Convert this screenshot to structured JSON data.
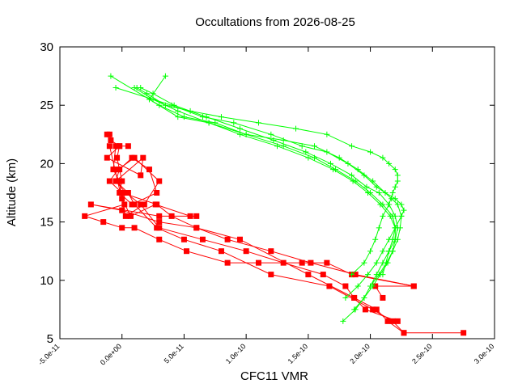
{
  "chart_data": {
    "type": "scatter",
    "title": "Occultations from 2026-08-25",
    "xlabel": "CFC11 VMR",
    "ylabel": "Altitude (km)",
    "xlim": [
      -5e-11,
      3e-10
    ],
    "ylim": [
      5,
      30
    ],
    "x_ticks": [
      -5e-11,
      0.0,
      5e-11,
      1e-10,
      1.5e-10,
      2e-10,
      2.5e-10,
      3e-10
    ],
    "x_tick_labels": [
      "-5.0e-11",
      "0.0e+00",
      "5.0e-11",
      "1.0e-10",
      "1.5e-10",
      "2.0e-10",
      "2.5e-10",
      "3.0e-10"
    ],
    "y_ticks": [
      5,
      10,
      15,
      20,
      25,
      30
    ],
    "y_tick_labels": [
      "5",
      "10",
      "15",
      "20",
      "25",
      "30"
    ],
    "grid": false,
    "legend": false,
    "series": [
      {
        "color": "#ff0000",
        "marker": "square",
        "x": [
          2.75e-10,
          2.27e-10,
          2.18e-10,
          2.02e-10,
          1.67e-10,
          1.2e-10,
          8e-11,
          5e-11,
          2.8e-11,
          1e-11,
          5e-12,
          -5e-12,
          -2e-12,
          8e-12,
          2.2e-11,
          2.8e-11,
          8e-12,
          -2e-12,
          0.0,
          -4e-12,
          -2e-12,
          -9e-12,
          -1e-11,
          -1.2e-11
        ],
        "y": [
          5.5,
          5.5,
          6.5,
          7.5,
          9.5,
          10.5,
          12.5,
          13.5,
          14.5,
          16.5,
          17.5,
          18.5,
          19.5,
          20.5,
          19.5,
          17.5,
          16.5,
          17.5,
          18.5,
          20.5,
          21.5,
          22.0,
          22.5,
          22.5
        ]
      },
      {
        "color": "#ff0000",
        "marker": "square",
        "x": [
          2.27e-10,
          2.14e-10,
          2.05e-10,
          1.87e-10,
          1.5e-10,
          9.5e-11,
          6e-11,
          4e-11,
          2.8e-11,
          0.0,
          -1e-11,
          -3e-12,
          1e-11,
          3e-11,
          1.8e-11,
          3e-12,
          -1e-11
        ],
        "y": [
          5.5,
          6.5,
          7.5,
          8.5,
          10.5,
          13.5,
          14.5,
          15.5,
          16.5,
          17.5,
          18.5,
          19.5,
          20.5,
          18.5,
          16.5,
          15.5,
          21.5
        ]
      },
      {
        "color": "#ff0000",
        "marker": "square",
        "x": [
          2.22e-10,
          1.96e-10,
          1.87e-10,
          1.8e-10,
          1.62e-10,
          1.3e-10,
          1e-10,
          6.5e-11,
          3e-11,
          1.5e-11,
          3e-12,
          -5e-12,
          1.7e-11,
          1.5e-11,
          -1.2e-11,
          -2e-12
        ],
        "y": [
          6.5,
          7.5,
          8.5,
          9.5,
          10.5,
          11.5,
          12.5,
          13.5,
          14.5,
          16.5,
          17.5,
          18.5,
          20.5,
          19.0,
          20.5,
          21.5
        ]
      },
      {
        "color": "#ff0000",
        "marker": "square",
        "x": [
          2.1e-10,
          2.04e-10,
          2.35e-10,
          1.85e-10,
          1.65e-10,
          1.45e-10,
          1.1e-10,
          8.5e-11,
          5.2e-11,
          3e-11,
          1e-11,
          0.0,
          -1.5e-11,
          -3e-11,
          2e-12
        ],
        "y": [
          8.5,
          9.5,
          9.5,
          10.5,
          11.5,
          11.5,
          11.5,
          11.5,
          12.5,
          13.5,
          14.5,
          14.5,
          15.0,
          15.5,
          16.5
        ]
      },
      {
        "color": "#ff0000",
        "marker": "square",
        "x": [
          2.35e-10,
          1.88e-10,
          1.52e-10,
          1.2e-10,
          8.5e-11,
          6e-11,
          3e-11,
          0.0,
          -2.5e-11,
          3e-11,
          6e-11,
          5.5e-11,
          2.7e-11,
          7e-12,
          0.0,
          -2e-12,
          -7e-12,
          -5e-12,
          5e-12
        ],
        "y": [
          9.5,
          10.5,
          11.5,
          12.5,
          13.5,
          14.5,
          15.0,
          16.0,
          16.5,
          15.5,
          15.5,
          15.5,
          16.5,
          15.5,
          17.0,
          18.5,
          19.5,
          21.5,
          21.5
        ]
      },
      {
        "color": "#00ff00",
        "marker": "plus",
        "x": [
          1.85e-10,
          1.95e-10,
          2e-10,
          2.04e-10,
          2.07e-10,
          2.1e-10,
          2.15e-10,
          2.18e-10,
          2.2e-10,
          2.22e-10,
          2.22e-10,
          2.2e-10,
          2.15e-10,
          2.1e-10,
          2e-10,
          1.85e-10,
          1.65e-10,
          1.4e-10,
          1.1e-10,
          8e-11,
          5.5e-11,
          3.5e-11,
          2e-11,
          1.2e-11
        ],
        "y": [
          10.5,
          11.5,
          12.5,
          13.5,
          14.5,
          15.5,
          16.5,
          17.5,
          18.0,
          18.5,
          19.0,
          19.5,
          20.0,
          20.5,
          21.0,
          21.5,
          22.5,
          23.0,
          23.5,
          24.0,
          24.5,
          25.0,
          26.0,
          26.5
        ]
      },
      {
        "color": "#00ff00",
        "marker": "plus",
        "x": [
          1.8e-10,
          1.9e-10,
          1.98e-10,
          2.05e-10,
          2.1e-10,
          2.15e-10,
          2.2e-10,
          2.25e-10,
          2.27e-10,
          2.25e-10,
          2.2e-10,
          2.12e-10,
          2.05e-10,
          1.95e-10,
          1.82e-10,
          1.65e-10,
          1.45e-10,
          1.2e-10,
          9e-11,
          6.5e-11,
          4e-11,
          -5e-12
        ],
        "y": [
          8.5,
          9.5,
          10.5,
          11.5,
          12.5,
          13.5,
          14.5,
          15.5,
          16.0,
          16.5,
          17.0,
          17.5,
          18.0,
          19.0,
          20.0,
          21.0,
          21.5,
          22.5,
          23.5,
          24.0,
          25.0,
          26.5
        ]
      },
      {
        "color": "#00ff00",
        "marker": "plus",
        "x": [
          1.78e-10,
          1.88e-10,
          1.95e-10,
          2e-10,
          2.07e-10,
          2.13e-10,
          2.18e-10,
          2.22e-10,
          2.24e-10,
          2.25e-10,
          2.22e-10,
          2.17e-10,
          2.12e-10,
          2.02e-10,
          1.9e-10,
          1.75e-10,
          1.55e-10,
          1.3e-10,
          1e-10,
          7.5e-11,
          5e-11,
          3e-11,
          -9e-12
        ],
        "y": [
          6.5,
          7.5,
          8.5,
          9.5,
          10.5,
          11.5,
          12.5,
          13.5,
          14.5,
          15.5,
          16.5,
          17.0,
          17.5,
          18.5,
          19.5,
          20.5,
          21.5,
          22.0,
          22.5,
          23.5,
          24.0,
          25.0,
          27.5
        ]
      },
      {
        "color": "#00ff00",
        "marker": "plus",
        "x": [
          1.87e-10,
          1.95e-10,
          2.02e-10,
          2.08e-10,
          2.14e-10,
          2.18e-10,
          2.2e-10,
          2.2e-10,
          2.16e-10,
          2.08e-10,
          1.98e-10,
          1.86e-10,
          1.7e-10,
          1.5e-10,
          1.25e-10,
          9.5e-11,
          7e-11,
          4.5e-11,
          2.5e-11,
          1e-11
        ],
        "y": [
          7.5,
          8.5,
          9.5,
          10.5,
          11.5,
          12.5,
          13.5,
          14.5,
          15.5,
          16.5,
          17.5,
          18.5,
          19.5,
          20.5,
          21.5,
          22.5,
          23.5,
          24.5,
          25.5,
          26.5
        ]
      },
      {
        "color": "#00ff00",
        "marker": "plus",
        "x": [
          2e-10,
          2.05e-10,
          2.1e-10,
          2.15e-10,
          2.18e-10,
          2.2e-10,
          2.18e-10,
          2.1e-10,
          2e-10,
          1.88e-10,
          1.72e-10,
          1.55e-10,
          1.3e-10,
          1e-10,
          7e-11,
          4.5e-11,
          2.2e-11,
          3.5e-11
        ],
        "y": [
          9.5,
          10.5,
          11.5,
          12.5,
          13.5,
          14.5,
          15.5,
          16.5,
          17.5,
          18.5,
          19.5,
          20.5,
          21.5,
          22.5,
          23.5,
          24.0,
          25.5,
          27.5
        ]
      },
      {
        "color": "#00ff00",
        "marker": "plus",
        "x": [
          2.1e-10,
          2.15e-10,
          2.2e-10,
          2.22e-10,
          2.2e-10,
          2.15e-10,
          2.07e-10,
          1.97e-10,
          1.85e-10,
          1.68e-10,
          1.48e-10,
          1.22e-10,
          9.5e-11,
          6.8e-11,
          4.2e-11,
          2.5e-11,
          1.5e-11
        ],
        "y": [
          10.5,
          12.5,
          13.5,
          14.5,
          15.5,
          16.5,
          17.5,
          18.0,
          19.0,
          20.0,
          21.0,
          22.0,
          23.0,
          24.0,
          25.0,
          26.0,
          26.5
        ]
      }
    ]
  }
}
